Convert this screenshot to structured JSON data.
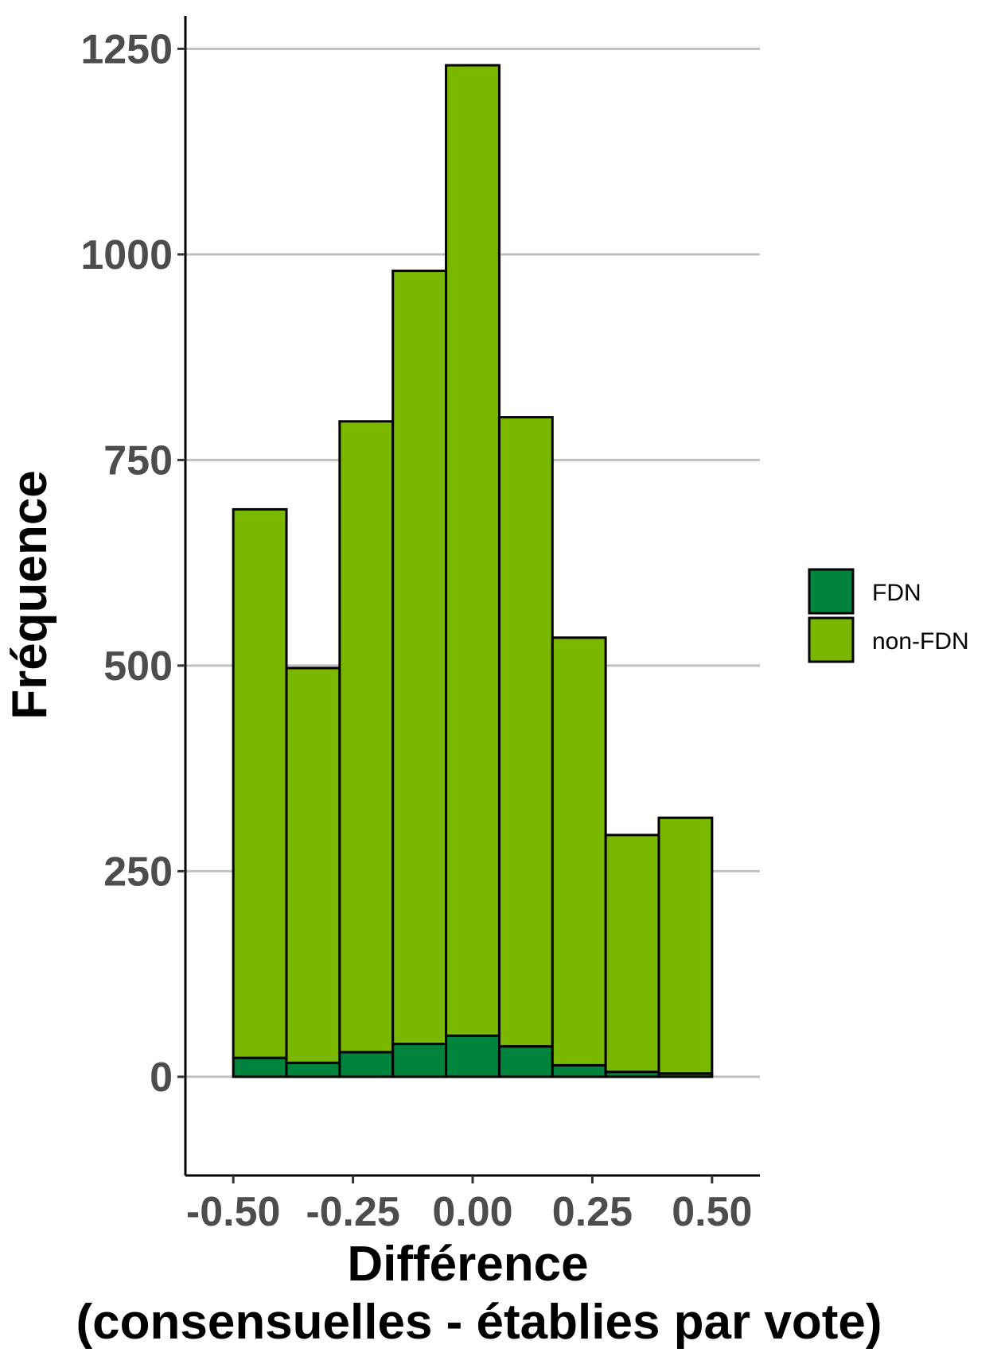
{
  "chart_data": {
    "type": "bar",
    "stacked": true,
    "bin_edges": [
      -0.5,
      -0.3889,
      -0.2778,
      -0.1667,
      -0.0556,
      0.0556,
      0.1667,
      0.2778,
      0.3889,
      0.5
    ],
    "series": [
      {
        "name": "FDN",
        "color": "#00843d",
        "values": [
          23,
          17,
          30,
          40,
          50,
          37,
          14,
          6,
          4
        ]
      },
      {
        "name": "non-FDN",
        "color": "#7ab800",
        "values": [
          667,
          480,
          767,
          940,
          1180,
          765,
          520,
          288,
          311
        ]
      }
    ],
    "xlabel": "Différence",
    "xlabel2": "(consensuelles - établies par vote)",
    "ylabel": "Fréquence",
    "xlim": [
      -0.6,
      0.6
    ],
    "ylim": [
      -120,
      1290
    ],
    "xticks": [
      -0.5,
      -0.25,
      0,
      0.25,
      0.5
    ],
    "xtick_labels": [
      "-0.50",
      "-0.25",
      "0.00",
      "0.25",
      "0.50"
    ],
    "yticks": [
      0,
      250,
      500,
      750,
      1000,
      1250
    ],
    "ytick_labels": [
      "0",
      "250",
      "500",
      "750",
      "1000",
      "1250"
    ],
    "grid": "horizontal",
    "legend_position": "right"
  }
}
